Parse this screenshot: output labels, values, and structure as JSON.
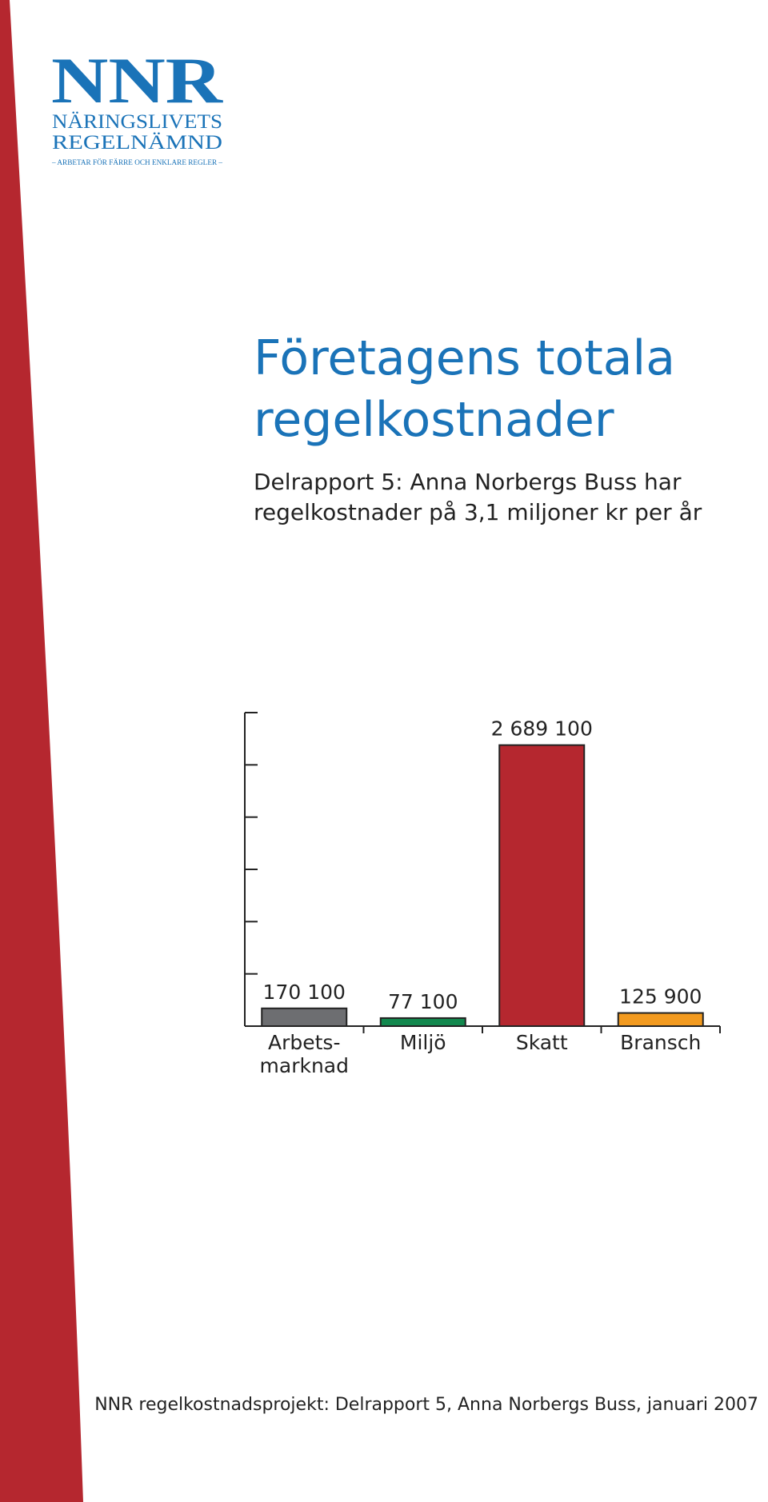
{
  "logo": {
    "mark": "NNR",
    "name_lines": [
      "NÄRINGSLIVETS",
      "REGELNÄMND"
    ],
    "tagline": "– ARBETAR FÖR FÄRRE OCH ENKLARE REGLER –"
  },
  "title_lines": [
    "Företagens totala",
    "regelkostnader"
  ],
  "subtitle_lines": [
    "Delrapport 5: Anna Norbergs Buss har",
    "regelkostnader på 3,1 miljoner kr per år"
  ],
  "footer": "NNR regelkostnadsprojekt: Delrapport 5, Anna Norbergs Buss, januari 2007",
  "chart_data": {
    "type": "bar",
    "categories": [
      "Arbets-\nmarknad",
      "Miljö",
      "Skatt",
      "Bransch"
    ],
    "values": [
      170100,
      77100,
      2689100,
      125900
    ],
    "value_labels": [
      "170 100",
      "77 100",
      "2 689 100",
      "125 900"
    ],
    "colors": [
      "#6d6e71",
      "#12884e",
      "#b5272f",
      "#f29a1f"
    ],
    "ylim": [
      0,
      3000000
    ],
    "yticks": [
      0,
      500000,
      1000000,
      1500000,
      2000000,
      2500000,
      3000000
    ]
  }
}
